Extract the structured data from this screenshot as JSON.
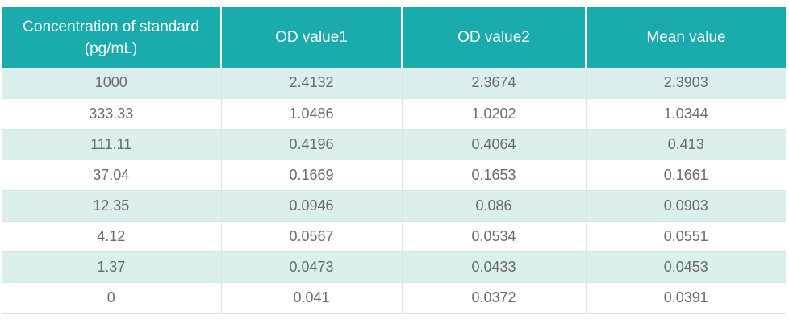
{
  "chart_data": {
    "type": "table",
    "columns": [
      [
        "Concentration of standard",
        "(pg/mL)"
      ],
      [
        "OD value1"
      ],
      [
        "OD value2"
      ],
      [
        "Mean value"
      ]
    ],
    "rows": [
      [
        "1000",
        "2.4132",
        "2.3674",
        "2.3903"
      ],
      [
        "333.33",
        "1.0486",
        "1.0202",
        "1.0344"
      ],
      [
        "111.11",
        "0.4196",
        "0.4064",
        "0.413"
      ],
      [
        "37.04",
        "0.1669",
        "0.1653",
        "0.1661"
      ],
      [
        "12.35",
        "0.0946",
        "0.086",
        "0.0903"
      ],
      [
        "4.12",
        "0.0567",
        "0.0534",
        "0.0551"
      ],
      [
        "1.37",
        "0.0473",
        "0.0433",
        "0.0453"
      ],
      [
        "0",
        "0.041",
        "0.0372",
        "0.0391"
      ]
    ],
    "colors": {
      "header_bg": "#1aabac",
      "header_text": "#ffffff",
      "stripe_bg": "#dcefef",
      "cell_text": "#6b6b6b"
    }
  }
}
